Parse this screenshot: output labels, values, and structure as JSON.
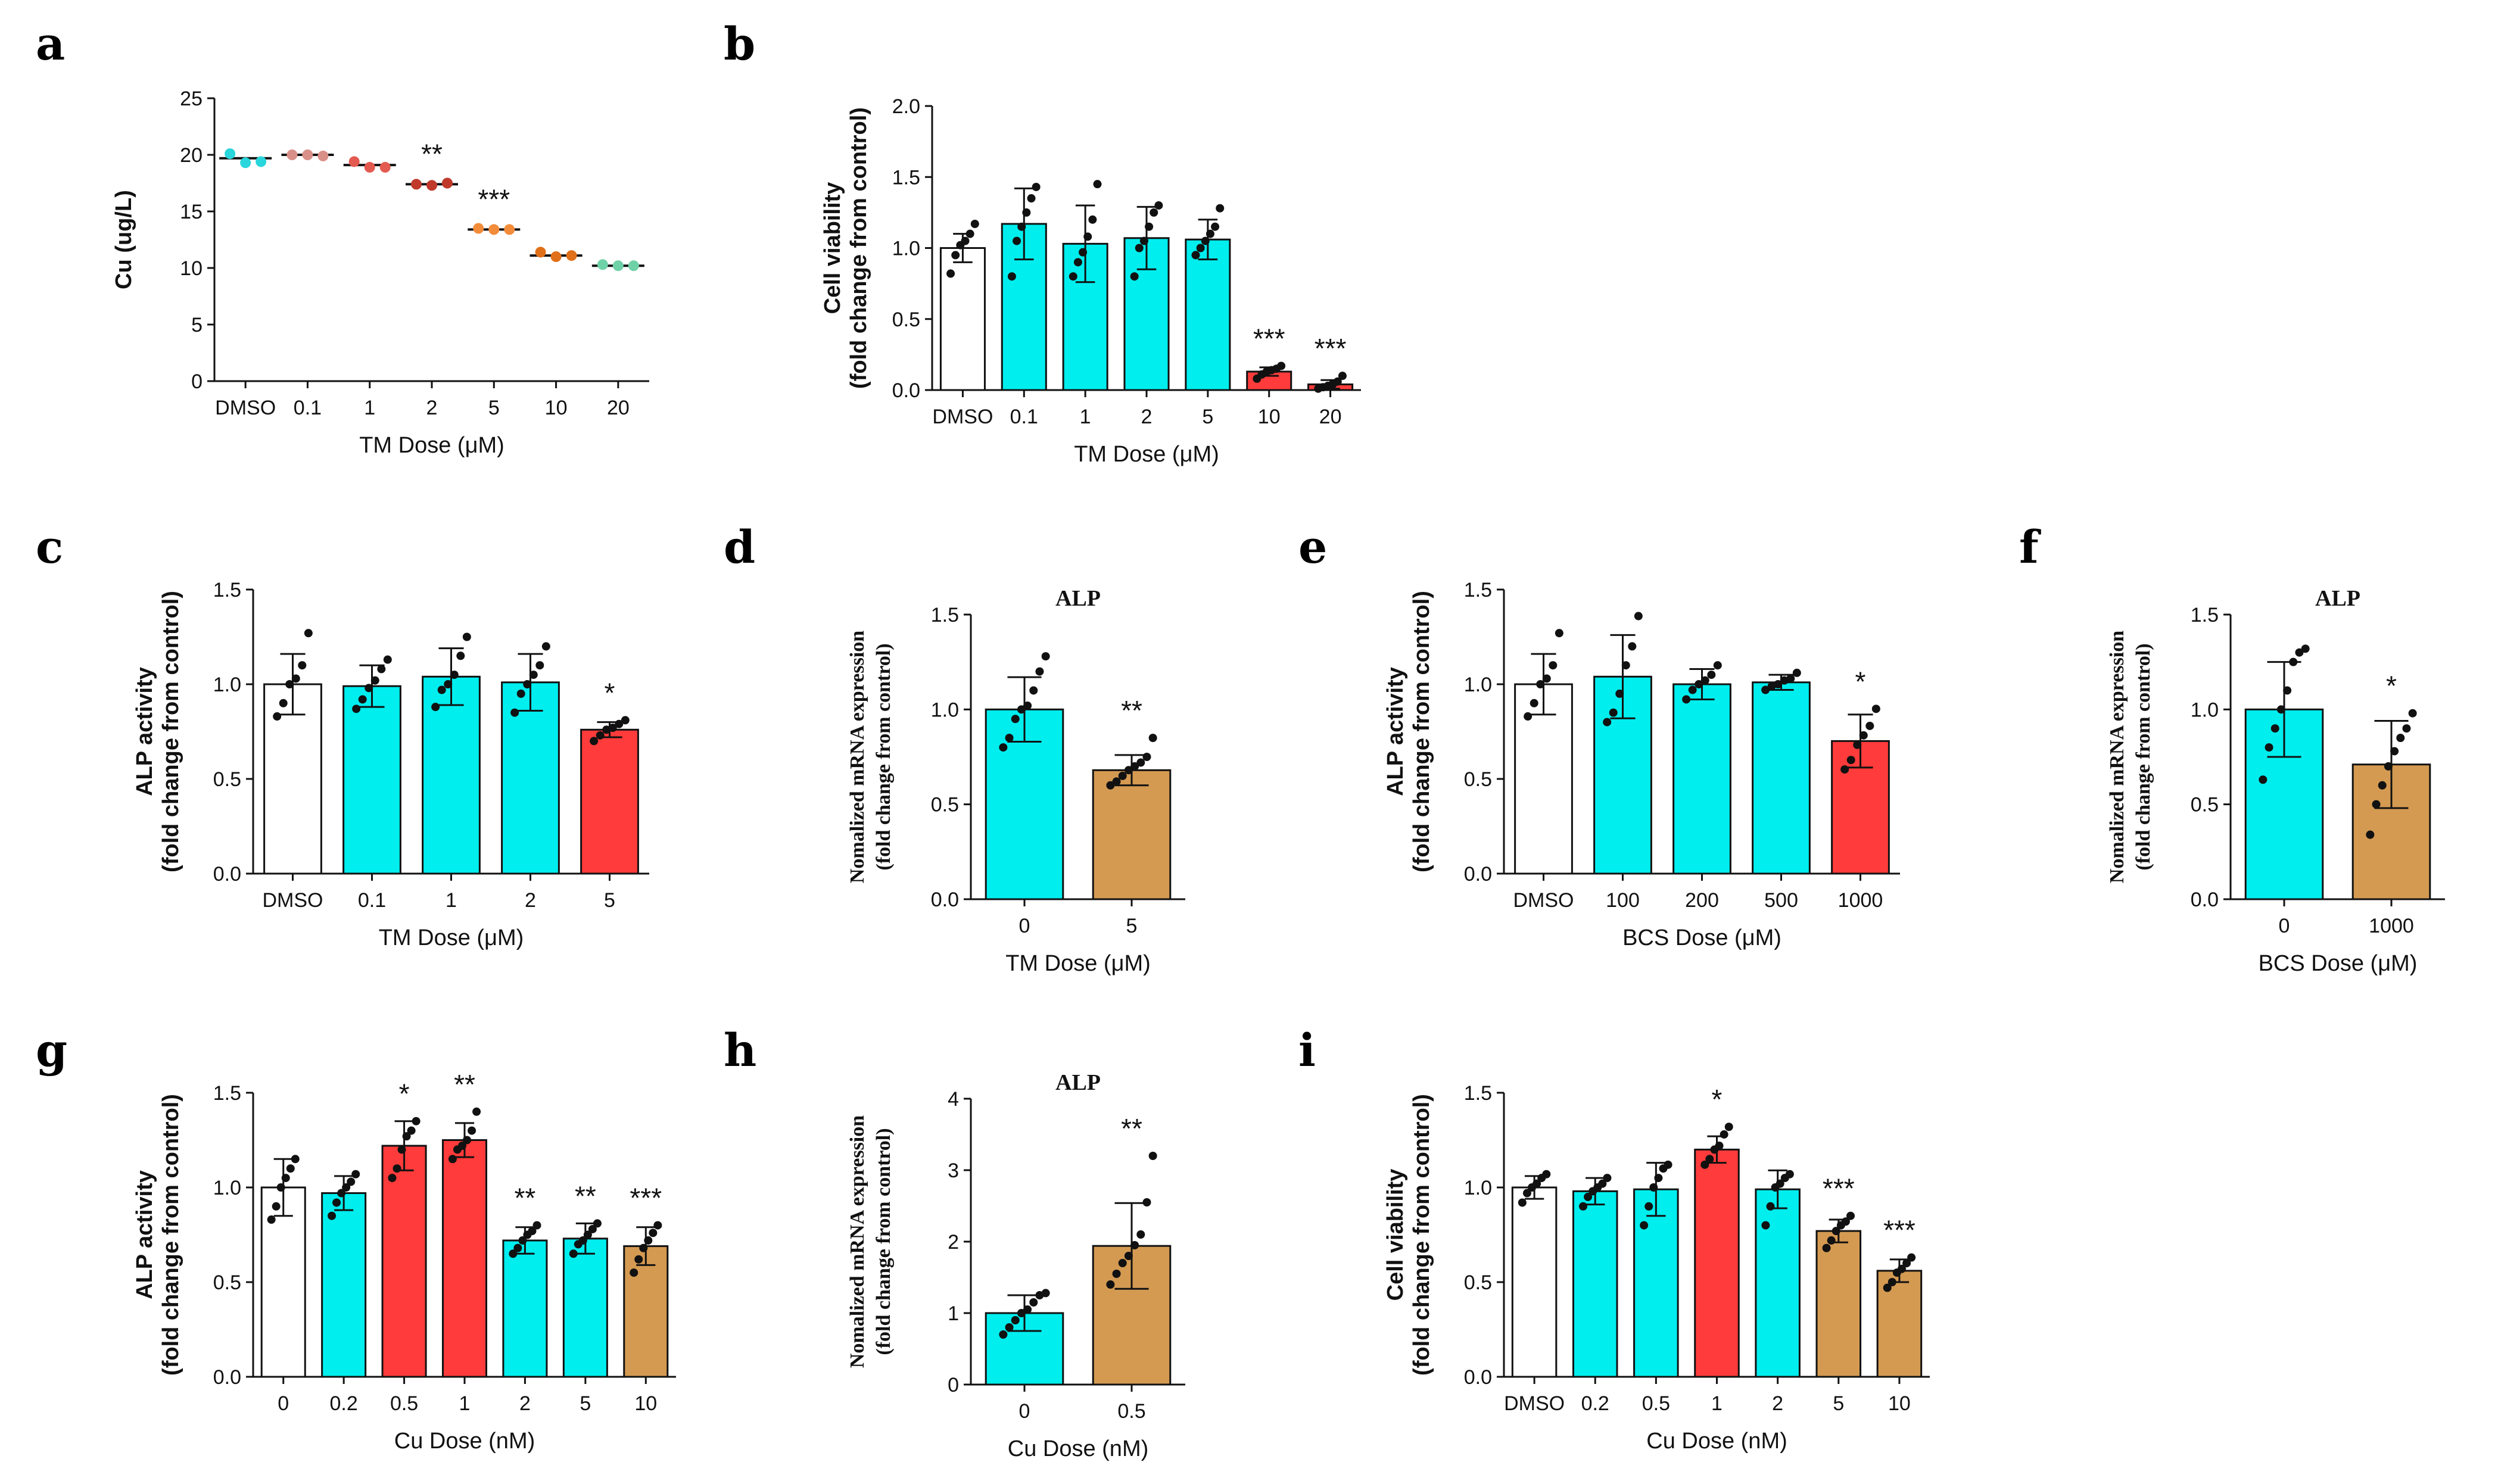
{
  "colors": {
    "white": "#ffffff",
    "cyan": "#00eeee",
    "red": "#ff3b3b",
    "tan": "#d49a52"
  },
  "chart_data": [
    {
      "id": "a",
      "type": "scatter",
      "ylabel": "Cu (ug/L)",
      "xlabel": "TM Dose (μM)",
      "ylim": [
        0,
        25
      ],
      "yticks": [
        "0",
        "5",
        "10",
        "15",
        "20",
        "25"
      ],
      "categories": [
        "DMSO",
        "0.1",
        "1",
        "2",
        "5",
        "10",
        "20"
      ],
      "values": [
        19.7,
        20.0,
        19.1,
        17.4,
        13.4,
        11.1,
        10.2
      ],
      "points": [
        [
          20.1,
          19.3,
          19.4
        ],
        [
          20.0,
          20.0,
          19.9
        ],
        [
          19.4,
          18.9,
          18.9
        ],
        [
          17.4,
          17.3,
          17.5
        ],
        [
          13.5,
          13.4,
          13.4
        ],
        [
          11.4,
          11.0,
          11.1
        ],
        [
          10.3,
          10.2,
          10.2
        ]
      ],
      "dotColors": [
        "#28d6dc",
        "#d99088",
        "#e35a50",
        "#c0392b",
        "#f28c3a",
        "#e0701a",
        "#6fd1a8"
      ],
      "sig": [
        "",
        "",
        "",
        "**",
        "***",
        "",
        ""
      ]
    },
    {
      "id": "b",
      "type": "bar",
      "ylabel": [
        "Cell viability",
        "(fold change from control)"
      ],
      "xlabel": "TM Dose (μM)",
      "ylim": [
        0,
        2.0
      ],
      "yticks": [
        "0.0",
        "0.5",
        "1.0",
        "1.5",
        "2.0"
      ],
      "categories": [
        "DMSO",
        "0.1",
        "1",
        "2",
        "5",
        "10",
        "20"
      ],
      "values": [
        1.0,
        1.17,
        1.03,
        1.07,
        1.06,
        0.13,
        0.04
      ],
      "errors": [
        0.1,
        0.25,
        0.27,
        0.22,
        0.14,
        0.03,
        0.03
      ],
      "points": [
        [
          0.82,
          0.95,
          1.02,
          1.05,
          1.1,
          1.17
        ],
        [
          0.8,
          1.05,
          1.15,
          1.25,
          1.35,
          1.43
        ],
        [
          0.8,
          0.9,
          0.97,
          1.08,
          1.2,
          1.45
        ],
        [
          0.8,
          1.0,
          1.05,
          1.15,
          1.25,
          1.3
        ],
        [
          0.95,
          1.0,
          1.05,
          1.1,
          1.15,
          1.28
        ],
        [
          0.08,
          0.11,
          0.13,
          0.14,
          0.15,
          0.17
        ],
        [
          0.01,
          0.02,
          0.03,
          0.04,
          0.06,
          0.1
        ]
      ],
      "colors": [
        "white",
        "cyan",
        "cyan",
        "cyan",
        "cyan",
        "red",
        "red"
      ],
      "sig": [
        "",
        "",
        "",
        "",
        "",
        "***",
        "***"
      ]
    },
    {
      "id": "c",
      "type": "bar",
      "ylabel": [
        "ALP activity",
        "(fold change from control)"
      ],
      "xlabel": "TM Dose (μM)",
      "ylim": [
        0,
        1.5
      ],
      "yticks": [
        "0.0",
        "0.5",
        "1.0",
        "1.5"
      ],
      "categories": [
        "DMSO",
        "0.1",
        "1",
        "2",
        "5"
      ],
      "values": [
        1.0,
        0.99,
        1.04,
        1.01,
        0.76
      ],
      "errors": [
        0.16,
        0.11,
        0.15,
        0.15,
        0.04
      ],
      "points": [
        [
          0.83,
          0.9,
          1.0,
          1.03,
          1.1,
          1.27
        ],
        [
          0.87,
          0.92,
          0.98,
          1.02,
          1.08,
          1.13
        ],
        [
          0.88,
          0.97,
          1.0,
          1.05,
          1.15,
          1.25
        ],
        [
          0.85,
          0.95,
          1.0,
          1.05,
          1.1,
          1.2
        ],
        [
          0.7,
          0.73,
          0.76,
          0.77,
          0.79,
          0.81
        ]
      ],
      "colors": [
        "white",
        "cyan",
        "cyan",
        "cyan",
        "red"
      ],
      "sig": [
        "",
        "",
        "",
        "",
        "*"
      ]
    },
    {
      "id": "d",
      "type": "bar",
      "title": "ALP",
      "ylabel": [
        "Nomalized mRNA expression",
        "(fold change from control)"
      ],
      "xlabel": "TM Dose (μM)",
      "ylim": [
        0,
        1.5
      ],
      "yticks": [
        "0.0",
        "0.5",
        "1.0",
        "1.5"
      ],
      "categories": [
        "0",
        "5"
      ],
      "values": [
        1.0,
        0.68
      ],
      "errors": [
        0.17,
        0.08
      ],
      "points": [
        [
          0.8,
          0.85,
          0.95,
          1.0,
          1.02,
          1.1,
          1.2,
          1.28
        ],
        [
          0.6,
          0.62,
          0.65,
          0.68,
          0.7,
          0.72,
          0.75,
          0.85
        ]
      ],
      "colors": [
        "cyan",
        "tan"
      ],
      "sig": [
        "",
        "**"
      ]
    },
    {
      "id": "e",
      "type": "bar",
      "ylabel": [
        "ALP activity",
        "(fold change from control)"
      ],
      "xlabel": "BCS Dose (μM)",
      "ylim": [
        0,
        1.5
      ],
      "yticks": [
        "0.0",
        "0.5",
        "1.0",
        "1.5"
      ],
      "categories": [
        "DMSO",
        "100",
        "200",
        "500",
        "1000"
      ],
      "values": [
        1.0,
        1.04,
        1.0,
        1.01,
        0.7
      ],
      "errors": [
        0.16,
        0.22,
        0.08,
        0.04,
        0.14
      ],
      "points": [
        [
          0.83,
          0.9,
          1.0,
          1.03,
          1.1,
          1.27
        ],
        [
          0.8,
          0.85,
          0.95,
          1.1,
          1.2,
          1.36
        ],
        [
          0.92,
          0.97,
          1.0,
          1.02,
          1.05,
          1.1
        ],
        [
          0.97,
          0.99,
          1.0,
          1.02,
          1.03,
          1.06
        ],
        [
          0.55,
          0.6,
          0.68,
          0.73,
          0.78,
          0.87
        ]
      ],
      "colors": [
        "white",
        "cyan",
        "cyan",
        "cyan",
        "red"
      ],
      "sig": [
        "",
        "",
        "",
        "",
        "*"
      ]
    },
    {
      "id": "f",
      "type": "bar",
      "title": "ALP",
      "ylabel": [
        "Nomalized mRNA expression",
        "(fold change from control)"
      ],
      "xlabel": "BCS Dose (μM)",
      "ylim": [
        0,
        1.5
      ],
      "yticks": [
        "0.0",
        "0.5",
        "1.0",
        "1.5"
      ],
      "categories": [
        "0",
        "1000"
      ],
      "values": [
        1.0,
        0.71
      ],
      "errors": [
        0.25,
        0.23
      ],
      "points": [
        [
          0.63,
          0.8,
          0.9,
          1.0,
          1.1,
          1.25,
          1.3,
          1.32
        ],
        [
          0.34,
          0.5,
          0.6,
          0.7,
          0.78,
          0.85,
          0.9,
          0.98
        ]
      ],
      "colors": [
        "cyan",
        "tan"
      ],
      "sig": [
        "",
        "*"
      ]
    },
    {
      "id": "g",
      "type": "bar",
      "ylabel": [
        "ALP activity",
        "(fold change from control)"
      ],
      "xlabel": "Cu Dose (nM)",
      "ylim": [
        0,
        1.5
      ],
      "yticks": [
        "0.0",
        "0.5",
        "1.0",
        "1.5"
      ],
      "categories": [
        "0",
        "0.2",
        "0.5",
        "1",
        "2",
        "5",
        "10"
      ],
      "values": [
        1.0,
        0.97,
        1.22,
        1.25,
        0.72,
        0.73,
        0.69
      ],
      "errors": [
        0.15,
        0.09,
        0.13,
        0.09,
        0.07,
        0.08,
        0.1
      ],
      "points": [
        [
          0.83,
          0.9,
          1.0,
          1.05,
          1.1,
          1.15
        ],
        [
          0.85,
          0.92,
          0.97,
          1.0,
          1.03,
          1.07
        ],
        [
          1.05,
          1.1,
          1.2,
          1.27,
          1.3,
          1.35
        ],
        [
          1.15,
          1.2,
          1.22,
          1.25,
          1.3,
          1.4
        ],
        [
          0.65,
          0.68,
          0.72,
          0.75,
          0.77,
          0.8
        ],
        [
          0.65,
          0.7,
          0.72,
          0.75,
          0.78,
          0.81
        ],
        [
          0.55,
          0.62,
          0.68,
          0.72,
          0.76,
          0.8
        ]
      ],
      "colors": [
        "white",
        "cyan",
        "red",
        "red",
        "cyan",
        "cyan",
        "tan"
      ],
      "sig": [
        "",
        "",
        "*",
        "**",
        "**",
        "**",
        "***"
      ]
    },
    {
      "id": "h",
      "type": "bar",
      "title": "ALP",
      "ylabel": [
        "Nomalized mRNA expression",
        "(fold change from control)"
      ],
      "xlabel": "Cu Dose (nM)",
      "ylim": [
        0,
        4
      ],
      "yticks": [
        "0",
        "1",
        "2",
        "3",
        "4"
      ],
      "categories": [
        "0",
        "0.5"
      ],
      "values": [
        1.0,
        1.94
      ],
      "errors": [
        0.25,
        0.6
      ],
      "points": [
        [
          0.7,
          0.8,
          0.9,
          1.0,
          1.05,
          1.15,
          1.25,
          1.28
        ],
        [
          1.4,
          1.55,
          1.7,
          1.8,
          1.95,
          2.1,
          2.55,
          3.2
        ]
      ],
      "colors": [
        "cyan",
        "tan"
      ],
      "sig": [
        "",
        "**"
      ]
    },
    {
      "id": "i",
      "type": "bar",
      "ylabel": [
        "Cell viability",
        "(fold change from control)"
      ],
      "xlabel": "Cu Dose (nM)",
      "ylim": [
        0,
        1.5
      ],
      "yticks": [
        "0.0",
        "0.5",
        "1.0",
        "1.5"
      ],
      "categories": [
        "DMSO",
        "0.2",
        "0.5",
        "1",
        "2",
        "5",
        "10"
      ],
      "values": [
        1.0,
        0.98,
        0.99,
        1.2,
        0.99,
        0.77,
        0.56
      ],
      "errors": [
        0.06,
        0.07,
        0.14,
        0.07,
        0.1,
        0.06,
        0.06
      ],
      "points": [
        [
          0.92,
          0.97,
          1.0,
          1.02,
          1.05,
          1.07
        ],
        [
          0.9,
          0.95,
          0.98,
          1.0,
          1.02,
          1.05
        ],
        [
          0.8,
          0.9,
          1.0,
          1.05,
          1.1,
          1.12
        ],
        [
          1.12,
          1.15,
          1.2,
          1.22,
          1.28,
          1.32
        ],
        [
          0.8,
          0.9,
          1.0,
          1.02,
          1.05,
          1.07
        ],
        [
          0.68,
          0.72,
          0.77,
          0.8,
          0.82,
          0.85
        ],
        [
          0.47,
          0.5,
          0.55,
          0.57,
          0.6,
          0.63
        ]
      ],
      "colors": [
        "white",
        "cyan",
        "cyan",
        "red",
        "cyan",
        "tan",
        "tan"
      ],
      "sig": [
        "",
        "",
        "",
        "*",
        "",
        "***",
        "***"
      ]
    }
  ]
}
